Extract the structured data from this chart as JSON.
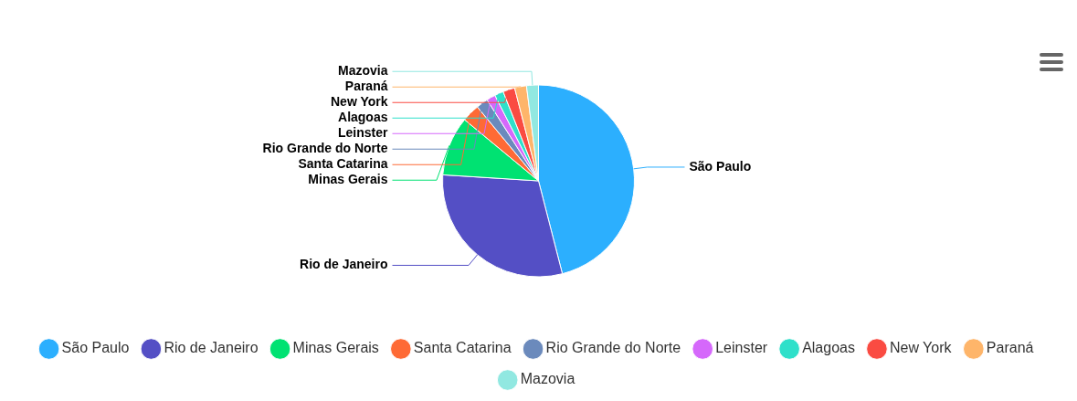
{
  "chart_data": {
    "type": "pie",
    "categories": [
      "São Paulo",
      "Rio de Janeiro",
      "Minas Gerais",
      "Santa Catarina",
      "Rio Grande do Norte",
      "Leinster",
      "Alagoas",
      "New York",
      "Paraná",
      "Mazovia"
    ],
    "values": [
      46,
      30,
      10,
      3,
      2,
      1.5,
      1.5,
      2,
      2,
      2
    ],
    "colors": [
      "#2caffe",
      "#544fc5",
      "#00e272",
      "#fe6a35",
      "#6b8abc",
      "#d568fb",
      "#2ee0ca",
      "#fa4b42",
      "#feb56a",
      "#91e8e1"
    ],
    "legend": "bottom"
  }
}
